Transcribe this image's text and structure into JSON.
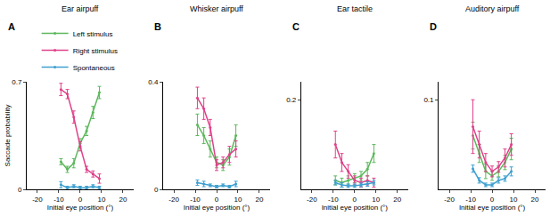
{
  "chart_data": [
    {
      "type": "line",
      "title": "Ear airpuff",
      "annotations": [
        "A"
      ],
      "xlabel": "Initial eye position (°)",
      "ylabel": "Saccade probability",
      "x": [
        -9,
        -6,
        -3,
        0,
        3,
        6,
        9
      ],
      "xlim": [
        -25,
        25
      ],
      "xticks": [
        -20,
        -10,
        0,
        10,
        20
      ],
      "ylim": [
        0,
        0.7
      ],
      "yticks": [
        0,
        0.7
      ],
      "series": [
        {
          "name": "Left stimulus",
          "color": "#5cb85c",
          "values": [
            0.18,
            0.13,
            0.17,
            0.3,
            0.38,
            0.5,
            0.63
          ],
          "error": [
            0.02,
            0.02,
            0.03,
            0.03,
            0.03,
            0.04,
            0.04
          ]
        },
        {
          "name": "Right stimulus",
          "color": "#e0408a",
          "values": [
            0.65,
            0.62,
            0.47,
            0.28,
            0.13,
            0.1,
            0.07
          ],
          "error": [
            0.04,
            0.03,
            0.04,
            0.03,
            0.02,
            0.02,
            0.03
          ]
        },
        {
          "name": "Spontaneous",
          "color": "#3fa0d0",
          "values": [
            0.03,
            0.01,
            0.02,
            0.01,
            0.01,
            0.02,
            0.01
          ],
          "error": [
            0.02,
            0.01,
            0.01,
            0.01,
            0.01,
            0.01,
            0.01
          ]
        }
      ]
    },
    {
      "type": "line",
      "title": "Whisker airpuff",
      "annotations": [
        "B"
      ],
      "xlabel": "Initial eye position (°)",
      "x": [
        -9,
        -6,
        -3,
        0,
        3,
        6,
        9
      ],
      "xlim": [
        -25,
        25
      ],
      "xticks": [
        -20,
        -10,
        0,
        10,
        20
      ],
      "ylim": [
        0,
        0.4
      ],
      "yticks": [
        0,
        0.4
      ],
      "series": [
        {
          "name": "Left stimulus",
          "color": "#5cb85c",
          "values": [
            0.24,
            0.2,
            0.15,
            0.1,
            0.09,
            0.12,
            0.2
          ],
          "error": [
            0.04,
            0.03,
            0.03,
            0.02,
            0.02,
            0.03,
            0.04
          ]
        },
        {
          "name": "Right stimulus",
          "color": "#e0408a",
          "values": [
            0.34,
            0.3,
            0.23,
            0.09,
            0.1,
            0.13,
            0.15
          ],
          "error": [
            0.04,
            0.04,
            0.03,
            0.02,
            0.02,
            0.03,
            0.03
          ]
        },
        {
          "name": "Spontaneous",
          "color": "#3fa0d0",
          "values": [
            0.025,
            0.02,
            0.015,
            0.01,
            0.015,
            0.01,
            0.02
          ],
          "error": [
            0.01,
            0.01,
            0.005,
            0.005,
            0.005,
            0.005,
            0.01
          ]
        }
      ]
    },
    {
      "type": "line",
      "title": "Ear tactile",
      "annotations": [
        "C"
      ],
      "xlabel": "Initial eye position (°)",
      "x": [
        -9,
        -6,
        -3,
        0,
        3,
        6,
        9
      ],
      "xlim": [
        -25,
        25
      ],
      "xticks": [
        -20,
        -10,
        0,
        10,
        20
      ],
      "ylim": [
        0,
        0.24
      ],
      "yticks": [
        0.2
      ],
      "series": [
        {
          "name": "Left stimulus",
          "color": "#5cb85c",
          "values": [
            0.02,
            0.015,
            0.02,
            0.025,
            0.03,
            0.045,
            0.08
          ],
          "error": [
            0.01,
            0.01,
            0.01,
            0.01,
            0.01,
            0.015,
            0.02
          ]
        },
        {
          "name": "Right stimulus",
          "color": "#e0408a",
          "values": [
            0.1,
            0.06,
            0.04,
            0.02,
            0.015,
            0.02,
            0.015
          ],
          "error": [
            0.03,
            0.02,
            0.015,
            0.01,
            0.01,
            0.01,
            0.01
          ]
        },
        {
          "name": "Spontaneous",
          "color": "#3fa0d0",
          "values": [
            0.015,
            0.01,
            0.008,
            0.008,
            0.01,
            0.012,
            0.015
          ],
          "error": [
            0.005,
            0.005,
            0.004,
            0.004,
            0.004,
            0.005,
            0.005
          ]
        }
      ]
    },
    {
      "type": "line",
      "title": "Auditory airpuff",
      "annotations": [
        "D"
      ],
      "xlabel": "Initial eye position (°)",
      "x": [
        -9,
        -6,
        -3,
        0,
        3,
        6,
        9
      ],
      "xlim": [
        -25,
        25
      ],
      "xticks": [
        -20,
        -10,
        0,
        10,
        20
      ],
      "ylim": [
        0,
        0.12
      ],
      "yticks": [
        0.1
      ],
      "series": [
        {
          "name": "Left stimulus",
          "color": "#5cb85c",
          "values": [
            0.06,
            0.04,
            0.02,
            0.015,
            0.02,
            0.03,
            0.045
          ],
          "error": [
            0.015,
            0.01,
            0.008,
            0.005,
            0.006,
            0.008,
            0.012
          ]
        },
        {
          "name": "Right stimulus",
          "color": "#e0408a",
          "values": [
            0.07,
            0.05,
            0.03,
            0.02,
            0.025,
            0.035,
            0.05
          ],
          "error": [
            0.03,
            0.015,
            0.01,
            0.006,
            0.006,
            0.01,
            0.012
          ]
        },
        {
          "name": "Spontaneous",
          "color": "#3fa0d0",
          "values": [
            0.023,
            0.01,
            0.005,
            0.005,
            0.01,
            0.012,
            0.02
          ],
          "error": [
            0.004,
            0.003,
            0.002,
            0.002,
            0.003,
            0.003,
            0.005
          ]
        }
      ]
    }
  ]
}
